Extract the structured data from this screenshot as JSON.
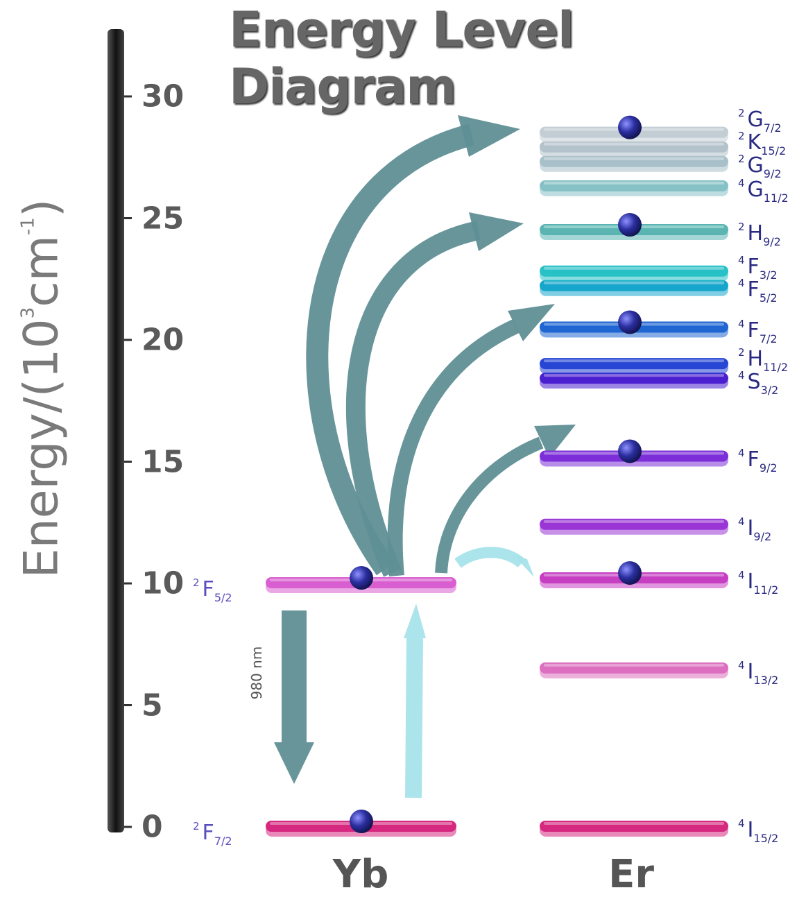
{
  "title": "Energy Level Diagram",
  "y_axis": {
    "label": "Energy/(10",
    "exp": "3",
    "unit": "cm",
    "unit_exp": "-1",
    "close": ")",
    "ticks": [
      "0",
      "5",
      "10",
      "15",
      "20",
      "25",
      "30"
    ]
  },
  "atoms": {
    "yb": "Yb",
    "er": "Er"
  },
  "emission_label": "980 nm",
  "yb_levels": [
    {
      "energy": 0,
      "pre": "2",
      "L": "F",
      "sub": "7/2",
      "color": "#d6287f"
    },
    {
      "energy": 10,
      "pre": "2",
      "L": "F",
      "sub": "5/2",
      "color": "#d95fd0"
    }
  ],
  "er_levels": [
    {
      "energy": 0,
      "pre": "4",
      "L": "I",
      "sub": "15/2",
      "color": "#d6287f"
    },
    {
      "energy": 6.5,
      "pre": "4",
      "L": "I",
      "sub": "13/2",
      "color": "#dc6fc0"
    },
    {
      "energy": 10.2,
      "pre": "4",
      "L": "I",
      "sub": "11/2",
      "color": "#c63fc2"
    },
    {
      "energy": 12.4,
      "pre": "4",
      "L": "I",
      "sub": "9/2",
      "color": "#9a36d6"
    },
    {
      "energy": 15.2,
      "pre": "4",
      "L": "F",
      "sub": "9/2",
      "color": "#7c2fd8"
    },
    {
      "energy": 18.4,
      "pre": "4",
      "L": "S",
      "sub": "3/2",
      "color": "#4a1fcf"
    },
    {
      "energy": 19.0,
      "pre": "2",
      "L": "H",
      "sub": "11/2",
      "color": "#2746d4"
    },
    {
      "energy": 20.5,
      "pre": "4",
      "L": "F",
      "sub": "7/2",
      "color": "#1f66d2"
    },
    {
      "energy": 22.2,
      "pre": "4",
      "L": "F",
      "sub": "5/2",
      "color": "#16a6cc"
    },
    {
      "energy": 22.8,
      "pre": "4",
      "L": "F",
      "sub": "3/2",
      "color": "#27c1c6"
    },
    {
      "energy": 24.5,
      "pre": "2",
      "L": "H",
      "sub": "9/2",
      "color": "#5ab5b2"
    },
    {
      "energy": 26.3,
      "pre": "4",
      "L": "G",
      "sub": "11/2",
      "color": "#86c1c6"
    },
    {
      "energy": 27.3,
      "pre": "2",
      "L": "G",
      "sub": "9/2",
      "color": "#a7c0c9"
    },
    {
      "energy": 27.9,
      "pre": "2",
      "L": "K",
      "sub": "15/2",
      "color": "#b3c2cb"
    },
    {
      "energy": 28.5,
      "pre": "2",
      "L": "G",
      "sub": "7/2",
      "color": "#c2cdd4"
    }
  ],
  "colors": {
    "transfer_arrow": "#5f8f95",
    "pump_arrow": "#a6e3ea",
    "electron": "#2b2fa0",
    "axis_bar": "#222222"
  }
}
